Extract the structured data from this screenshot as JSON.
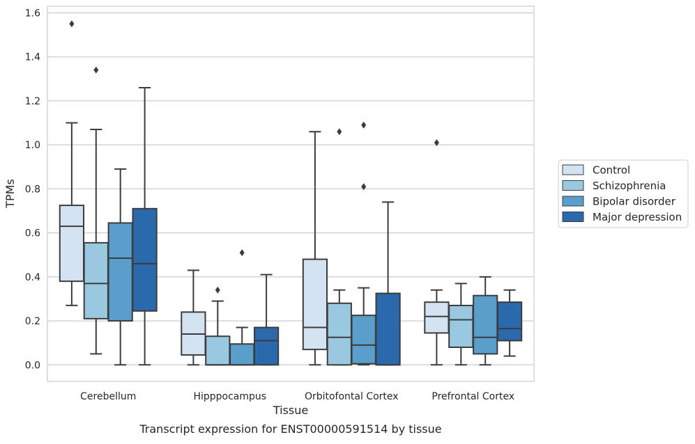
{
  "chart_data": {
    "type": "box",
    "title": "",
    "caption": "Transcript expression for ENST00000591514 by tissue",
    "xlabel": "Tissue",
    "ylabel": "TPMs",
    "ylim": [
      -0.075,
      1.63
    ],
    "yticks": [
      0.0,
      0.2,
      0.4,
      0.6,
      0.8,
      1.0,
      1.2,
      1.4,
      1.6
    ],
    "ytick_labels": [
      "0.0",
      "0.2",
      "0.4",
      "0.6",
      "0.8",
      "1.0",
      "1.2",
      "1.4",
      "1.6"
    ],
    "grid": "horizontal",
    "legend_position": "right",
    "categories": [
      "Cerebellum",
      "Hipppocampus",
      "Orbitofontal Cortex",
      "Prefrontal Cortex"
    ],
    "series": [
      {
        "name": "Control",
        "color": "#d3e3f1",
        "boxes": [
          {
            "whislo": 0.27,
            "q1": 0.38,
            "med": 0.63,
            "q3": 0.725,
            "whishi": 1.1,
            "fliers": [
              1.55
            ]
          },
          {
            "whislo": 0.0,
            "q1": 0.045,
            "med": 0.14,
            "q3": 0.24,
            "whishi": 0.43,
            "fliers": []
          },
          {
            "whislo": 0.0,
            "q1": 0.07,
            "med": 0.17,
            "q3": 0.48,
            "whishi": 1.06,
            "fliers": []
          },
          {
            "whislo": 0.0,
            "q1": 0.145,
            "med": 0.22,
            "q3": 0.285,
            "whishi": 0.34,
            "fliers": [
              1.01
            ]
          }
        ]
      },
      {
        "name": "Schizophrenia",
        "color": "#9ac8e0",
        "boxes": [
          {
            "whislo": 0.05,
            "q1": 0.21,
            "med": 0.37,
            "q3": 0.555,
            "whishi": 1.07,
            "fliers": [
              1.34
            ]
          },
          {
            "whislo": 0.0,
            "q1": 0.0,
            "med": 0.0,
            "q3": 0.13,
            "whishi": 0.29,
            "fliers": [
              0.34
            ]
          },
          {
            "whislo": 0.0,
            "q1": 0.0,
            "med": 0.125,
            "q3": 0.28,
            "whishi": 0.34,
            "fliers": [
              1.06
            ]
          },
          {
            "whislo": 0.0,
            "q1": 0.08,
            "med": 0.205,
            "q3": 0.27,
            "whishi": 0.37,
            "fliers": []
          }
        ]
      },
      {
        "name": "Bipolar disorder",
        "color": "#5a9ecb",
        "boxes": [
          {
            "whislo": 0.0,
            "q1": 0.2,
            "med": 0.485,
            "q3": 0.645,
            "whishi": 0.89,
            "fliers": []
          },
          {
            "whislo": 0.0,
            "q1": 0.0,
            "med": 0.0,
            "q3": 0.095,
            "whishi": 0.17,
            "fliers": [
              0.51
            ]
          },
          {
            "whislo": 0.0,
            "q1": 0.005,
            "med": 0.09,
            "q3": 0.225,
            "whishi": 0.35,
            "fliers": [
              0.81,
              1.09
            ]
          },
          {
            "whislo": 0.0,
            "q1": 0.05,
            "med": 0.125,
            "q3": 0.315,
            "whishi": 0.4,
            "fliers": []
          }
        ]
      },
      {
        "name": "Major depression",
        "color": "#2a69ac",
        "boxes": [
          {
            "whislo": 0.0,
            "q1": 0.245,
            "med": 0.46,
            "q3": 0.71,
            "whishi": 1.26,
            "fliers": []
          },
          {
            "whislo": 0.0,
            "q1": 0.0,
            "med": 0.11,
            "q3": 0.17,
            "whishi": 0.41,
            "fliers": []
          },
          {
            "whislo": 0.0,
            "q1": 0.0,
            "med": 0.0,
            "q3": 0.325,
            "whishi": 0.74,
            "fliers": []
          },
          {
            "whislo": 0.04,
            "q1": 0.11,
            "med": 0.165,
            "q3": 0.285,
            "whishi": 0.34,
            "fliers": []
          }
        ]
      }
    ]
  }
}
